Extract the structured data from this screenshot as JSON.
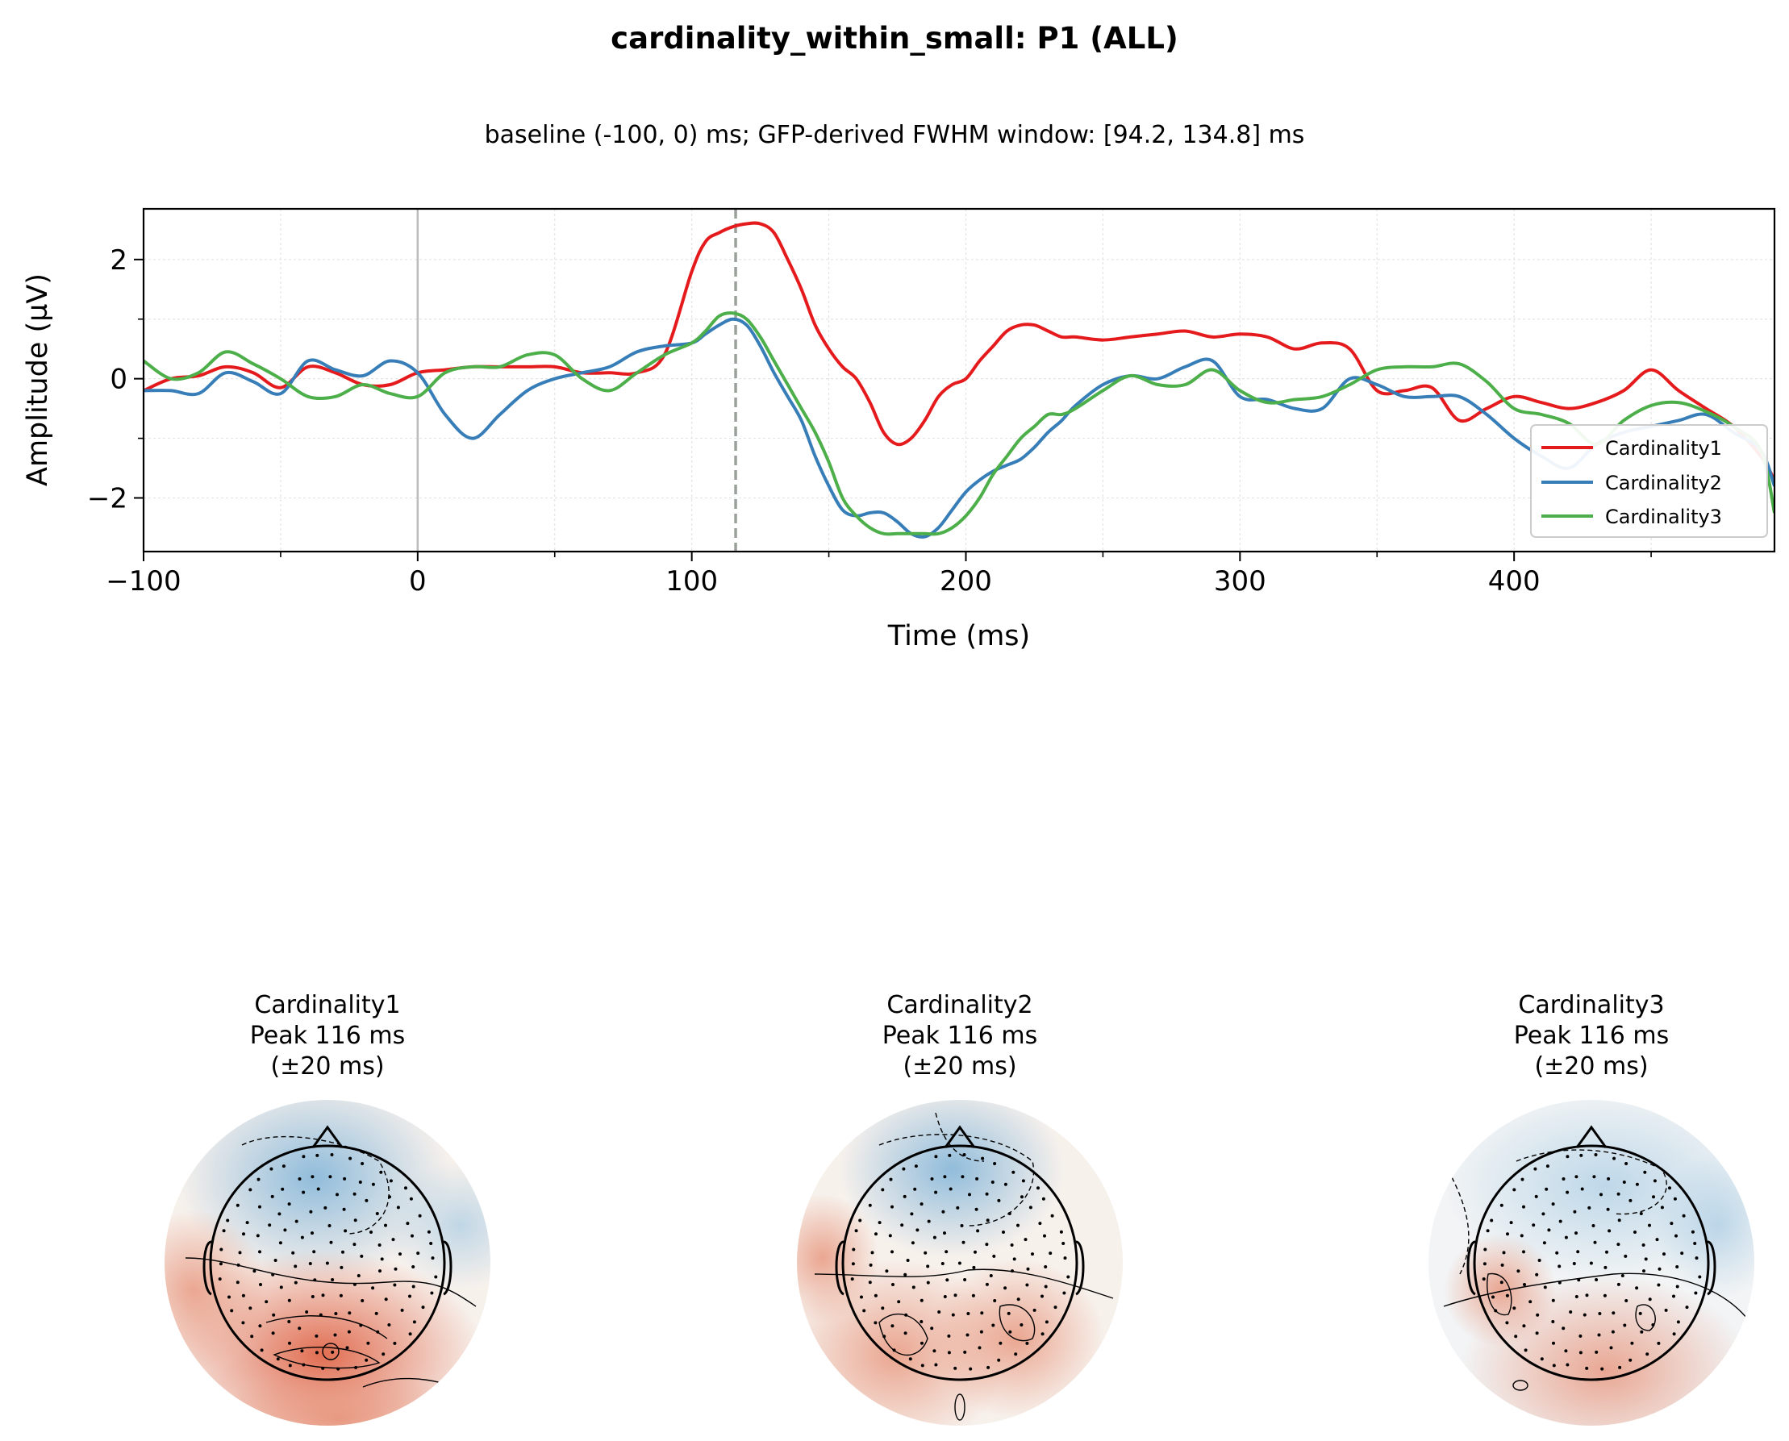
{
  "figure": {
    "title": "cardinality_within_small: P1 (ALL)",
    "subtitle": "baseline (-100, 0) ms; GFP-derived FWHM window: [94.2, 134.8] ms"
  },
  "chart_data": [
    {
      "type": "line",
      "xlabel": "Time (ms)",
      "ylabel": "Amplitude (µV)",
      "xlim": [
        -100,
        495
      ],
      "ylim": [
        -2.9,
        2.85
      ],
      "xticks": [
        -100,
        0,
        100,
        200,
        300,
        400
      ],
      "xtick_labels": [
        "−100",
        "0",
        "100",
        "200",
        "300",
        "400"
      ],
      "yticks": [
        2,
        0,
        -2
      ],
      "ytick_labels": [
        "2",
        "0",
        "−2"
      ],
      "grid": true,
      "legend_position": "lower-right",
      "vlines": [
        {
          "x": 0,
          "style": "solid",
          "color": "#bbbbbb"
        },
        {
          "x": 116,
          "style": "dashed",
          "color": "#9aa19a"
        }
      ],
      "x": [
        -100,
        -90,
        -80,
        -70,
        -60,
        -50,
        -40,
        -30,
        -20,
        -10,
        0,
        10,
        20,
        30,
        40,
        50,
        60,
        70,
        80,
        90,
        100,
        105,
        110,
        115,
        120,
        125,
        130,
        135,
        140,
        145,
        150,
        155,
        160,
        165,
        170,
        175,
        180,
        185,
        190,
        195,
        200,
        205,
        210,
        215,
        220,
        225,
        230,
        235,
        240,
        250,
        260,
        270,
        280,
        290,
        300,
        310,
        320,
        330,
        340,
        350,
        360,
        370,
        380,
        390,
        400,
        410,
        420,
        430,
        440,
        450,
        460,
        470,
        480,
        490,
        495
      ],
      "series": [
        {
          "name": "Cardinality1",
          "color": "#e41a1c",
          "values": [
            -0.2,
            0.0,
            0.05,
            0.2,
            0.1,
            -0.15,
            0.2,
            0.1,
            -0.1,
            -0.1,
            0.1,
            0.15,
            0.2,
            0.2,
            0.2,
            0.2,
            0.1,
            0.1,
            0.1,
            0.4,
            1.8,
            2.3,
            2.45,
            2.55,
            2.6,
            2.6,
            2.45,
            2.0,
            1.5,
            0.9,
            0.5,
            0.2,
            0.0,
            -0.4,
            -0.9,
            -1.1,
            -1.0,
            -0.7,
            -0.3,
            -0.1,
            0.0,
            0.3,
            0.55,
            0.8,
            0.9,
            0.9,
            0.8,
            0.7,
            0.7,
            0.65,
            0.7,
            0.75,
            0.8,
            0.7,
            0.75,
            0.7,
            0.5,
            0.6,
            0.5,
            -0.2,
            -0.2,
            -0.15,
            -0.7,
            -0.5,
            -0.3,
            -0.4,
            -0.5,
            -0.4,
            -0.2,
            0.15,
            -0.2,
            -0.5,
            -0.8,
            -1.3,
            -1.7
          ]
        },
        {
          "name": "Cardinality2",
          "color": "#377eb8",
          "values": [
            -0.2,
            -0.2,
            -0.25,
            0.1,
            -0.05,
            -0.25,
            0.3,
            0.15,
            0.05,
            0.3,
            0.1,
            -0.6,
            -1.0,
            -0.6,
            -0.2,
            0.0,
            0.1,
            0.2,
            0.45,
            0.55,
            0.6,
            0.75,
            0.9,
            1.0,
            0.9,
            0.55,
            0.1,
            -0.3,
            -0.7,
            -1.3,
            -1.8,
            -2.2,
            -2.3,
            -2.25,
            -2.25,
            -2.4,
            -2.6,
            -2.65,
            -2.5,
            -2.2,
            -1.9,
            -1.7,
            -1.55,
            -1.45,
            -1.35,
            -1.15,
            -0.9,
            -0.7,
            -0.45,
            -0.1,
            0.05,
            0.0,
            0.2,
            0.3,
            -0.3,
            -0.35,
            -0.5,
            -0.5,
            0.0,
            -0.1,
            -0.3,
            -0.3,
            -0.3,
            -0.6,
            -1.0,
            -1.3,
            -1.5,
            -1.1,
            -0.9,
            -0.8,
            -0.7,
            -0.6,
            -0.9,
            -1.2,
            -1.8
          ]
        },
        {
          "name": "Cardinality3",
          "color": "#4daf4a",
          "values": [
            0.3,
            0.0,
            0.1,
            0.45,
            0.25,
            0.0,
            -0.3,
            -0.3,
            -0.1,
            -0.25,
            -0.3,
            0.1,
            0.2,
            0.2,
            0.4,
            0.4,
            0.0,
            -0.2,
            0.1,
            0.4,
            0.6,
            0.8,
            1.05,
            1.1,
            1.0,
            0.7,
            0.3,
            -0.1,
            -0.5,
            -0.9,
            -1.4,
            -2.0,
            -2.3,
            -2.5,
            -2.6,
            -2.6,
            -2.6,
            -2.6,
            -2.6,
            -2.5,
            -2.3,
            -2.0,
            -1.6,
            -1.3,
            -1.0,
            -0.8,
            -0.6,
            -0.6,
            -0.5,
            -0.2,
            0.05,
            -0.1,
            -0.1,
            0.15,
            -0.2,
            -0.4,
            -0.35,
            -0.3,
            -0.1,
            0.15,
            0.2,
            0.2,
            0.25,
            -0.05,
            -0.5,
            -0.6,
            -0.75,
            -1.1,
            -0.7,
            -0.45,
            -0.4,
            -0.55,
            -0.8,
            -1.2,
            -2.25
          ]
        }
      ]
    },
    {
      "type": "heatmap",
      "panels": [
        {
          "title": [
            "Cardinality1",
            "Peak 116 ms",
            "(±20 ms)"
          ]
        },
        {
          "title": [
            "Cardinality2",
            "Peak 116 ms",
            "(±20 ms)"
          ]
        },
        {
          "title": [
            "Cardinality3",
            "Peak 116 ms",
            "(±20 ms)"
          ]
        }
      ],
      "colors": {
        "positive": "#e8694a",
        "negative": "#8cbcdb",
        "neutral": "#f7f4f1"
      }
    }
  ]
}
